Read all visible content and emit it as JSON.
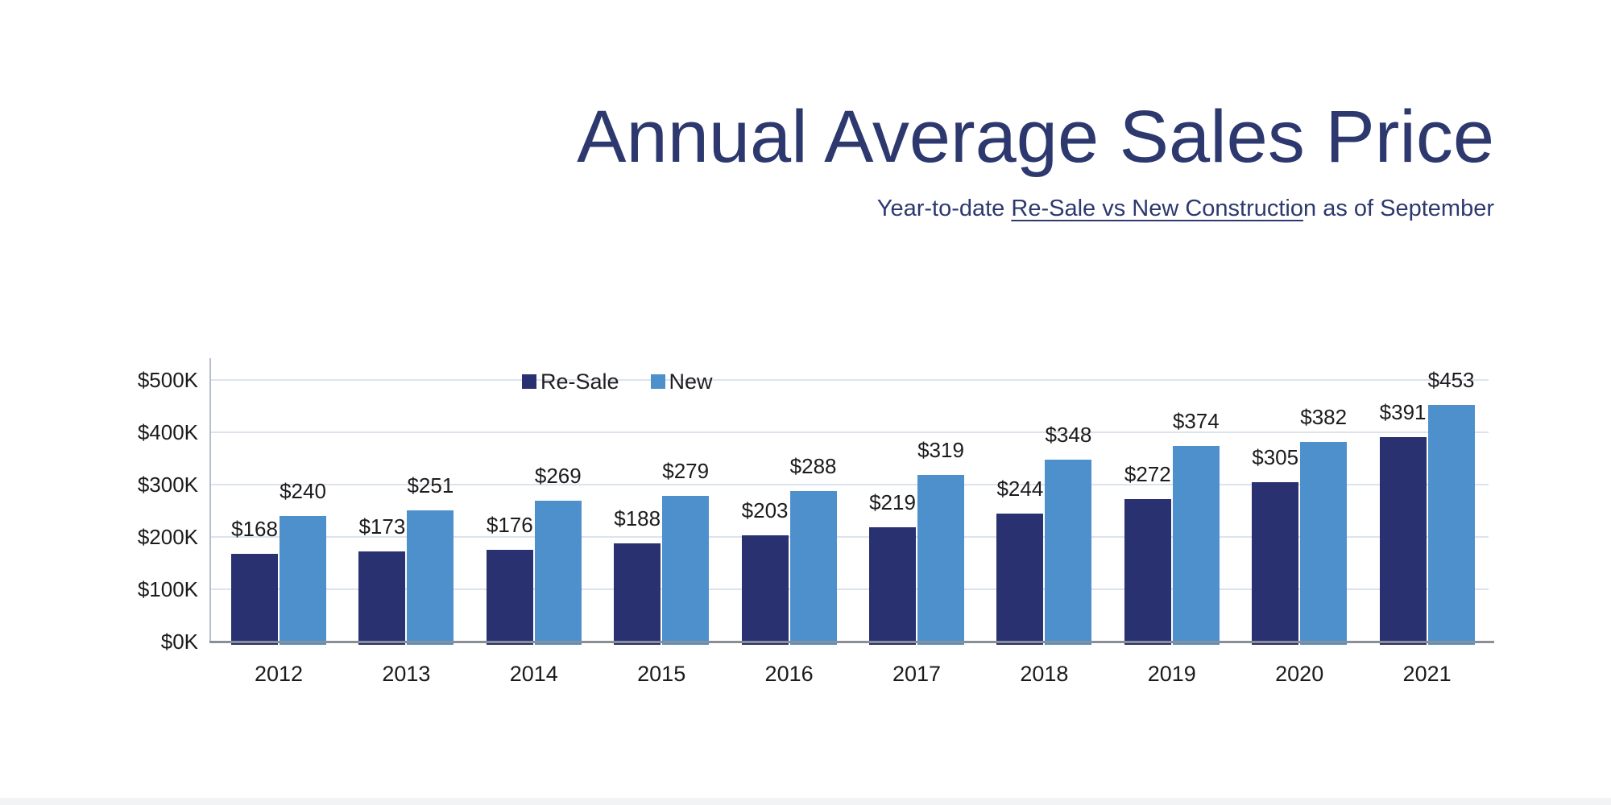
{
  "slide": {
    "title": "Annual Average Sales Price",
    "subtitle_prefix": "Year-to-date ",
    "subtitle_underlined": "Re-Sale vs New Constructio",
    "subtitle_suffix": "n as of September"
  },
  "colors": {
    "resale_navy": "#293170",
    "new_blue": "#4e90cc",
    "title_navy": "#2d396e",
    "gridline": "#dce3ee",
    "y_axis_line": "#b8bfca",
    "x_axis_line": "#8a8e96"
  },
  "chart_data": {
    "type": "bar",
    "title": "Annual Average Sales Price",
    "subtitle": "Year-to-date Re-Sale vs New Construction as of September",
    "categories": [
      "2012",
      "2013",
      "2014",
      "2015",
      "2016",
      "2017",
      "2018",
      "2019",
      "2020",
      "2021"
    ],
    "series": [
      {
        "name": "Re-Sale",
        "color": "#293170",
        "values": [
          168,
          173,
          176,
          188,
          203,
          219,
          244,
          272,
          305,
          391
        ],
        "labels": [
          "$168",
          "$173",
          "$176",
          "$188",
          "$203",
          "$219",
          "$244",
          "$272",
          "$305",
          "$391"
        ]
      },
      {
        "name": "New",
        "color": "#4e90cc",
        "values": [
          240,
          251,
          269,
          279,
          288,
          319,
          348,
          374,
          382,
          453
        ],
        "labels": [
          "$240",
          "$251",
          "$269",
          "$279",
          "$288",
          "$319",
          "$348",
          "$374",
          "$382",
          "$453"
        ]
      }
    ],
    "y_ticks": [
      "$0K",
      "$100K",
      "$200K",
      "$300K",
      "$400K",
      "$500K"
    ],
    "ylim": [
      0,
      500
    ],
    "y_unit": "thousand_dollars",
    "grid": true,
    "legend_position": "top-center"
  }
}
